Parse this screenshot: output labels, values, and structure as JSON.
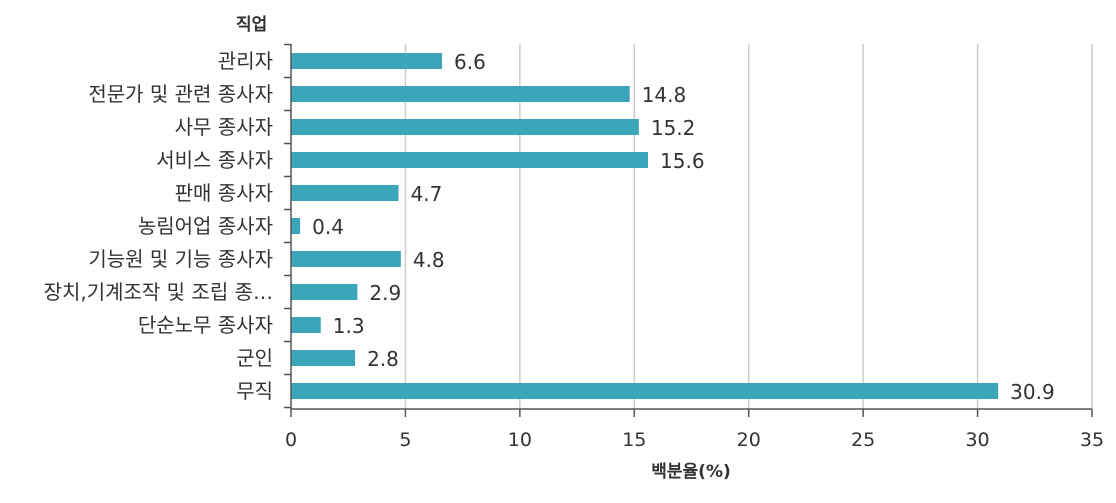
{
  "chart_data": {
    "type": "bar",
    "orientation": "horizontal",
    "ylabel": "직업",
    "xlabel": "백분율(%)",
    "categories": [
      "관리자",
      "전문가 및 관련 종사자",
      "사무 종사자",
      "서비스 종사자",
      "판매 종사자",
      "농림어업 종사자",
      "기능원 및 기능 종사자",
      "장치,기계조작 및 조립 종…",
      "단순노무 종사자",
      "군인",
      "무직"
    ],
    "values": [
      6.6,
      14.8,
      15.2,
      15.6,
      4.7,
      0.4,
      4.8,
      2.9,
      1.3,
      2.8,
      30.9
    ],
    "value_labels": [
      "6.6",
      "14.8",
      "15.2",
      "15.6",
      "4.7",
      "0.4",
      "4.8",
      "2.9",
      "1.3",
      "2.8",
      "30.9"
    ],
    "xlim": [
      0,
      35
    ],
    "xticks": [
      0,
      5,
      10,
      15,
      20,
      25,
      30,
      35
    ],
    "xtick_labels": [
      "0",
      "5",
      "10",
      "15",
      "20",
      "25",
      "30",
      "35"
    ],
    "grid": "vertical",
    "legend": "none",
    "colors": {
      "bar": "#3aa6b9",
      "grid": "#cccccc",
      "axis": "#555555",
      "text": "#333333"
    }
  }
}
